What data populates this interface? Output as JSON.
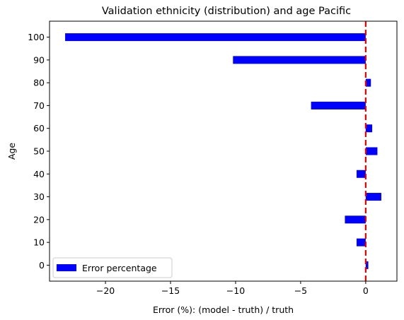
{
  "chart_data": {
    "type": "bar",
    "orientation": "horizontal",
    "title": "Validation ethnicity (distribution) and age Pacific",
    "xlabel": "Error (%): (model - truth) / truth",
    "ylabel": "Age",
    "categories": [
      "0",
      "10",
      "20",
      "30",
      "40",
      "50",
      "60",
      "70",
      "80",
      "90",
      "100"
    ],
    "y_values": [
      0,
      10,
      20,
      30,
      40,
      50,
      60,
      70,
      80,
      90,
      100
    ],
    "series": [
      {
        "name": "Error percentage",
        "color": "#0000ff",
        "values": [
          0.2,
          -0.7,
          -1.6,
          1.2,
          -0.7,
          0.9,
          0.5,
          -4.2,
          0.4,
          -10.2,
          -23.1
        ]
      }
    ],
    "xlim": [
      -24.3,
      2.4
    ],
    "ylim": [
      -7,
      107
    ],
    "xticks": [
      -20,
      -15,
      -10,
      -5,
      0
    ],
    "xtick_labels": [
      "−20",
      "−15",
      "−10",
      "−5",
      "0"
    ],
    "yticks": [
      0,
      10,
      20,
      30,
      40,
      50,
      60,
      70,
      80,
      90,
      100
    ],
    "reference_line": {
      "x": 0,
      "color": "#ee0000",
      "style": "dashed"
    },
    "grid": false,
    "legend": "lower-left"
  }
}
